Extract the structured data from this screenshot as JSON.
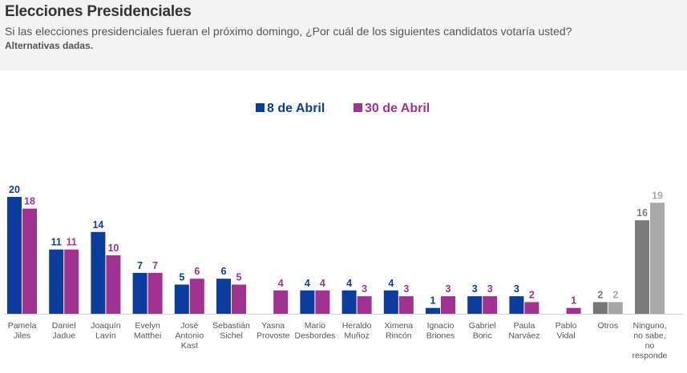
{
  "header": {
    "title": "Elecciones Presidenciales",
    "subtitle": "Si las elecciones presidenciales fueran el próximo domingo, ¿Por cuál de los siguientes candidatos votaría usted?",
    "note": "Alternativas dadas."
  },
  "chart_data": {
    "type": "bar",
    "categories": [
      [
        "Pamela",
        "Jiles"
      ],
      [
        "Daniel",
        "Jadue"
      ],
      [
        "Joaquín",
        "Lavín"
      ],
      [
        "Evelyn",
        "Matthei"
      ],
      [
        "José",
        "Antonio",
        "Kast"
      ],
      [
        "Sebastián",
        "Sichel"
      ],
      [
        "Yasna",
        "Provoste"
      ],
      [
        "Mario",
        "Desbordes"
      ],
      [
        "Heraldo",
        "Muñoz"
      ],
      [
        "Ximena",
        "Rincón"
      ],
      [
        "Ignacio",
        "Briones"
      ],
      [
        "Gabriel",
        "Boric"
      ],
      [
        "Paula",
        "Narváez"
      ],
      [
        "Pablo",
        "Vidal"
      ],
      [
        "Otros"
      ],
      [
        "Ninguno,",
        "no sabe,",
        "no",
        "responde"
      ]
    ],
    "series": [
      {
        "name": "8 de Abril",
        "color": "#0a3d9e",
        "values": [
          20,
          11,
          14,
          7,
          5,
          6,
          null,
          4,
          4,
          4,
          1,
          3,
          3,
          null,
          2,
          16
        ]
      },
      {
        "name": "30 de Abril",
        "color": "#a0338f",
        "values": [
          18,
          11,
          10,
          7,
          6,
          5,
          4,
          4,
          3,
          3,
          3,
          3,
          2,
          1,
          2,
          19
        ]
      }
    ],
    "special_colors": {
      "otros": [
        "#777777",
        "#a6a6a6"
      ],
      "ninguno": [
        "#7b7b7b",
        "#a9a9a9"
      ]
    },
    "ylim": [
      0,
      20
    ],
    "legend_position": "top-center",
    "grid": false
  }
}
